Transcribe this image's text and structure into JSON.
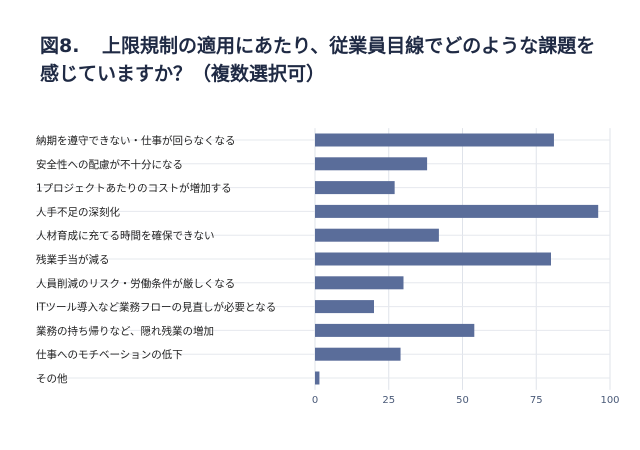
{
  "title": {
    "number": "図8.",
    "text": "上限規制の適用にあたり、従業員目線でどのような課題を感じていますか？（複数選択可）"
  },
  "chart_data": {
    "type": "bar",
    "orientation": "horizontal",
    "categories": [
      "納期を遵守できない・仕事が回らなくなる",
      "安全性への配慮が不十分になる",
      "1プロジェクトあたりのコストが増加する",
      "人手不足の深刻化",
      "人材育成に充てる時間を確保できない",
      "残業手当が減る",
      "人員削減のリスク・労働条件が厳しくなる",
      "ITツール導入など業務フローの見直しが必要となる",
      "業務の持ち帰りなど、隠れ残業の増加",
      "仕事へのモチベーションの低下",
      "その他"
    ],
    "values": [
      81,
      38,
      27,
      96,
      42,
      80,
      30,
      20,
      54,
      29,
      1.5
    ],
    "xlim": [
      0,
      100
    ],
    "xticks": [
      0,
      25,
      50,
      75,
      100
    ],
    "bar_color": "#5a6d9a",
    "grid": "vertical",
    "legend": "none"
  }
}
